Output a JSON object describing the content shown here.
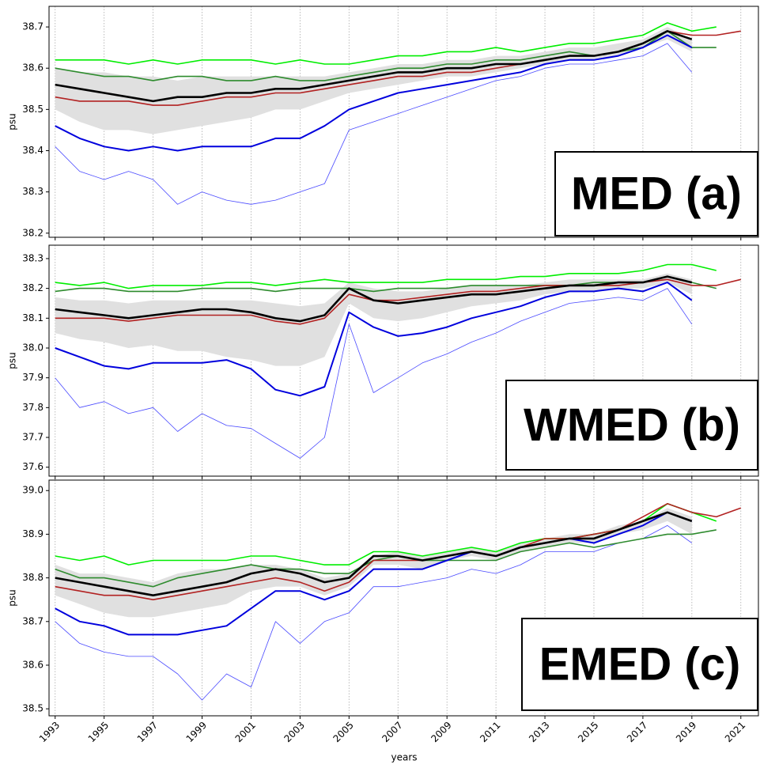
{
  "chart_data": [
    {
      "type": "line",
      "annotation": "MED (a)",
      "ylabel": "psu",
      "grid": true,
      "xtick_labels": false,
      "x": [
        1993,
        1994,
        1995,
        1996,
        1997,
        1998,
        1999,
        2000,
        2001,
        2002,
        2003,
        2004,
        2005,
        2006,
        2007,
        2008,
        2009,
        2010,
        2011,
        2012,
        2013,
        2014,
        2015,
        2016,
        2017,
        2018,
        2019,
        2020,
        2021
      ],
      "xlim": [
        1992.75,
        2021.75
      ],
      "xticks": [
        1993,
        1995,
        1997,
        1999,
        2001,
        2003,
        2005,
        2007,
        2009,
        2011,
        2013,
        2015,
        2017,
        2019,
        2021
      ],
      "ylim": [
        38.19,
        38.75
      ],
      "yticks": [
        38.2,
        38.3,
        38.4,
        38.5,
        38.6,
        38.7
      ],
      "band": {
        "color": "#e0e0e0",
        "upper": [
          38.6,
          38.59,
          38.59,
          38.58,
          38.58,
          38.57,
          38.58,
          38.58,
          38.58,
          38.58,
          38.58,
          38.58,
          38.59,
          38.6,
          38.61,
          38.61,
          38.62,
          38.62,
          38.63,
          38.63,
          38.64,
          38.65,
          38.65,
          38.66,
          38.67,
          38.7,
          38.67,
          null,
          null
        ],
        "lower": [
          38.5,
          38.47,
          38.45,
          38.45,
          38.44,
          38.45,
          38.46,
          38.47,
          38.48,
          38.5,
          38.5,
          38.52,
          38.54,
          38.55,
          38.56,
          38.57,
          38.58,
          38.58,
          38.59,
          38.6,
          38.61,
          38.62,
          38.62,
          38.63,
          38.65,
          38.67,
          38.64,
          null,
          null
        ]
      },
      "series": [
        {
          "color": "#4a4aff",
          "linewidth": 0.8,
          "values": [
            38.41,
            38.35,
            38.33,
            38.35,
            38.33,
            38.27,
            38.3,
            38.28,
            38.27,
            38.28,
            38.3,
            38.32,
            38.45,
            38.47,
            38.49,
            38.51,
            38.53,
            38.55,
            38.57,
            38.58,
            38.6,
            38.61,
            38.61,
            38.62,
            38.63,
            38.66,
            38.59,
            null,
            null
          ]
        },
        {
          "color": "#00ee00",
          "linewidth": 1.6,
          "values": [
            38.62,
            38.62,
            38.62,
            38.61,
            38.62,
            38.61,
            38.62,
            38.62,
            38.62,
            38.61,
            38.62,
            38.61,
            38.61,
            38.62,
            38.63,
            38.63,
            38.64,
            38.64,
            38.65,
            38.64,
            38.65,
            38.66,
            38.66,
            38.67,
            38.68,
            38.71,
            38.69,
            38.7,
            null
          ]
        },
        {
          "color": "#2e8b2e",
          "linewidth": 1.6,
          "values": [
            38.6,
            38.59,
            38.58,
            38.58,
            38.57,
            38.58,
            38.58,
            38.57,
            38.57,
            38.58,
            38.57,
            38.57,
            38.58,
            38.59,
            38.6,
            38.6,
            38.61,
            38.61,
            38.62,
            38.62,
            38.63,
            38.64,
            38.63,
            38.64,
            38.65,
            38.69,
            38.65,
            38.65,
            null
          ]
        },
        {
          "color": "#b22222",
          "linewidth": 1.6,
          "values": [
            38.53,
            38.52,
            38.52,
            38.52,
            38.51,
            38.51,
            38.52,
            38.53,
            38.53,
            38.54,
            38.54,
            38.55,
            38.56,
            38.57,
            38.58,
            38.58,
            38.59,
            38.59,
            38.6,
            38.61,
            38.62,
            38.63,
            38.63,
            38.64,
            38.66,
            38.69,
            38.68,
            38.68,
            38.69
          ]
        },
        {
          "color": "#0000dd",
          "linewidth": 2,
          "values": [
            38.46,
            38.43,
            38.41,
            38.4,
            38.41,
            38.4,
            38.41,
            38.41,
            38.41,
            38.43,
            38.43,
            38.46,
            38.5,
            38.52,
            38.54,
            38.55,
            38.56,
            38.57,
            38.58,
            38.59,
            38.61,
            38.62,
            38.62,
            38.63,
            38.65,
            38.68,
            38.65,
            null,
            null
          ]
        },
        {
          "color": "#000000",
          "linewidth": 2.6,
          "values": [
            38.56,
            38.55,
            38.54,
            38.53,
            38.52,
            38.53,
            38.53,
            38.54,
            38.54,
            38.55,
            38.55,
            38.56,
            38.57,
            38.58,
            38.59,
            38.59,
            38.6,
            38.6,
            38.61,
            38.61,
            38.62,
            38.63,
            38.63,
            38.64,
            38.66,
            38.69,
            38.67,
            null,
            null
          ]
        }
      ]
    },
    {
      "type": "line",
      "annotation": "WMED (b)",
      "ylabel": "psu",
      "grid": true,
      "xtick_labels": false,
      "x": [
        1993,
        1994,
        1995,
        1996,
        1997,
        1998,
        1999,
        2000,
        2001,
        2002,
        2003,
        2004,
        2005,
        2006,
        2007,
        2008,
        2009,
        2010,
        2011,
        2012,
        2013,
        2014,
        2015,
        2016,
        2017,
        2018,
        2019,
        2020,
        2021
      ],
      "xlim": [
        1992.75,
        2021.75
      ],
      "xticks": [
        1993,
        1995,
        1997,
        1999,
        2001,
        2003,
        2005,
        2007,
        2009,
        2011,
        2013,
        2015,
        2017,
        2019,
        2021
      ],
      "ylim": [
        37.57,
        38.345
      ],
      "yticks": [
        37.6,
        37.7,
        37.8,
        37.9,
        {
          "value": 38,
          "label": "38.0"
        },
        38.1,
        38.2,
        38.3
      ],
      "band": {
        "color": "#e0e0e0",
        "upper": [
          38.17,
          38.16,
          38.16,
          38.15,
          38.16,
          38.16,
          38.16,
          38.16,
          38.16,
          38.15,
          38.14,
          38.15,
          38.22,
          38.2,
          38.19,
          38.19,
          38.2,
          38.21,
          38.21,
          38.21,
          38.22,
          38.23,
          38.23,
          38.23,
          38.23,
          38.25,
          38.23,
          null,
          null
        ],
        "lower": [
          38.05,
          38.03,
          38.02,
          38.0,
          38.01,
          37.99,
          37.99,
          37.97,
          37.96,
          37.94,
          37.94,
          37.97,
          38.15,
          38.1,
          38.09,
          38.1,
          38.12,
          38.14,
          38.15,
          38.16,
          38.18,
          38.19,
          38.19,
          38.2,
          38.2,
          38.22,
          38.18,
          null,
          null
        ]
      },
      "series": [
        {
          "color": "#4a4aff",
          "linewidth": 0.8,
          "values": [
            37.9,
            37.8,
            37.82,
            37.78,
            37.8,
            37.72,
            37.78,
            37.74,
            37.73,
            37.68,
            37.63,
            37.7,
            38.08,
            37.85,
            37.9,
            37.95,
            37.98,
            38.02,
            38.05,
            38.09,
            38.12,
            38.15,
            38.16,
            38.17,
            38.16,
            38.2,
            38.08,
            null,
            null
          ]
        },
        {
          "color": "#00ee00",
          "linewidth": 1.6,
          "values": [
            38.22,
            38.21,
            38.22,
            38.2,
            38.21,
            38.21,
            38.21,
            38.22,
            38.22,
            38.21,
            38.22,
            38.23,
            38.22,
            38.22,
            38.22,
            38.22,
            38.23,
            38.23,
            38.23,
            38.24,
            38.24,
            38.25,
            38.25,
            38.25,
            38.26,
            38.28,
            38.28,
            38.26,
            null
          ]
        },
        {
          "color": "#2e8b2e",
          "linewidth": 1.6,
          "values": [
            38.19,
            38.2,
            38.2,
            38.19,
            38.19,
            38.19,
            38.2,
            38.2,
            38.2,
            38.19,
            38.2,
            38.2,
            38.2,
            38.19,
            38.2,
            38.2,
            38.2,
            38.21,
            38.21,
            38.21,
            38.21,
            38.21,
            38.22,
            38.22,
            38.22,
            38.24,
            38.22,
            38.2,
            null
          ]
        },
        {
          "color": "#b22222",
          "linewidth": 1.6,
          "values": [
            38.1,
            38.1,
            38.1,
            38.09,
            38.1,
            38.11,
            38.11,
            38.11,
            38.11,
            38.09,
            38.08,
            38.1,
            38.18,
            38.16,
            38.16,
            38.17,
            38.18,
            38.19,
            38.19,
            38.2,
            38.21,
            38.21,
            38.21,
            38.21,
            38.22,
            38.23,
            38.21,
            38.21,
            38.23
          ]
        },
        {
          "color": "#0000dd",
          "linewidth": 2,
          "values": [
            38.0,
            37.97,
            37.94,
            37.93,
            37.95,
            37.95,
            37.95,
            37.96,
            37.93,
            37.86,
            37.84,
            37.87,
            38.12,
            38.07,
            38.04,
            38.05,
            38.07,
            38.1,
            38.12,
            38.14,
            38.17,
            38.19,
            38.19,
            38.2,
            38.19,
            38.22,
            38.16,
            null,
            null
          ]
        },
        {
          "color": "#000000",
          "linewidth": 2.6,
          "values": [
            38.13,
            38.12,
            38.11,
            38.1,
            38.11,
            38.12,
            38.13,
            38.13,
            38.12,
            38.1,
            38.09,
            38.11,
            38.2,
            38.16,
            38.15,
            38.16,
            38.17,
            38.18,
            38.18,
            38.19,
            38.2,
            38.21,
            38.21,
            38.22,
            38.22,
            38.24,
            38.22,
            null,
            null
          ]
        }
      ]
    },
    {
      "type": "line",
      "annotation": "EMED (c)",
      "ylabel": "psu",
      "xlabel": "years",
      "grid": true,
      "xtick_labels": true,
      "x": [
        1993,
        1994,
        1995,
        1996,
        1997,
        1998,
        1999,
        2000,
        2001,
        2002,
        2003,
        2004,
        2005,
        2006,
        2007,
        2008,
        2009,
        2010,
        2011,
        2012,
        2013,
        2014,
        2015,
        2016,
        2017,
        2018,
        2019,
        2020,
        2021
      ],
      "xlim": [
        1992.75,
        2021.75
      ],
      "xticks": [
        1993,
        1995,
        1997,
        1999,
        2001,
        2003,
        2005,
        2007,
        2009,
        2011,
        2013,
        2015,
        2017,
        2019,
        2021
      ],
      "ylim": [
        38.484,
        39.024
      ],
      "yticks": [
        38.5,
        38.6,
        38.7,
        38.8,
        38.9,
        {
          "value": 39,
          "label": "39.0"
        }
      ],
      "band": {
        "color": "#e0e0e0",
        "upper": [
          38.83,
          38.81,
          38.81,
          38.8,
          38.79,
          38.81,
          38.82,
          38.82,
          38.83,
          38.83,
          38.82,
          38.8,
          38.81,
          38.85,
          38.86,
          38.85,
          38.86,
          38.87,
          38.86,
          38.88,
          38.89,
          38.9,
          38.9,
          38.92,
          38.93,
          38.96,
          38.94,
          null,
          null
        ],
        "lower": [
          38.76,
          38.74,
          38.72,
          38.71,
          38.71,
          38.72,
          38.73,
          38.74,
          38.77,
          38.78,
          38.78,
          38.76,
          38.78,
          38.83,
          38.83,
          38.82,
          38.84,
          38.85,
          38.84,
          38.86,
          38.87,
          38.88,
          38.88,
          38.9,
          38.91,
          38.93,
          38.9,
          null,
          null
        ]
      },
      "series": [
        {
          "color": "#4a4aff",
          "linewidth": 0.8,
          "values": [
            38.7,
            38.65,
            38.63,
            38.62,
            38.62,
            38.58,
            38.52,
            38.58,
            38.55,
            38.7,
            38.65,
            38.7,
            38.72,
            38.78,
            38.78,
            38.79,
            38.8,
            38.82,
            38.81,
            38.83,
            38.86,
            38.86,
            38.86,
            38.88,
            38.89,
            38.92,
            38.88,
            null,
            null
          ]
        },
        {
          "color": "#00ee00",
          "linewidth": 1.6,
          "values": [
            38.85,
            38.84,
            38.85,
            38.83,
            38.84,
            38.84,
            38.84,
            38.84,
            38.85,
            38.85,
            38.84,
            38.83,
            38.83,
            38.86,
            38.86,
            38.85,
            38.86,
            38.87,
            38.86,
            38.88,
            38.89,
            38.89,
            38.9,
            38.91,
            38.93,
            38.97,
            38.95,
            38.93,
            null
          ]
        },
        {
          "color": "#2e8b2e",
          "linewidth": 1.6,
          "values": [
            38.82,
            38.8,
            38.8,
            38.79,
            38.78,
            38.8,
            38.81,
            38.82,
            38.83,
            38.82,
            38.82,
            38.81,
            38.81,
            38.84,
            38.85,
            38.84,
            38.84,
            38.84,
            38.84,
            38.86,
            38.87,
            38.88,
            38.87,
            38.88,
            38.89,
            38.9,
            38.9,
            38.91,
            null
          ]
        },
        {
          "color": "#b22222",
          "linewidth": 1.6,
          "values": [
            38.78,
            38.77,
            38.76,
            38.76,
            38.75,
            38.76,
            38.77,
            38.78,
            38.79,
            38.8,
            38.79,
            38.77,
            38.79,
            38.84,
            38.84,
            38.84,
            38.85,
            38.86,
            38.85,
            38.87,
            38.89,
            38.89,
            38.9,
            38.91,
            38.94,
            38.97,
            38.95,
            38.94,
            38.96
          ]
        },
        {
          "color": "#0000dd",
          "linewidth": 2,
          "values": [
            38.73,
            38.7,
            38.69,
            38.67,
            38.67,
            38.67,
            38.68,
            38.69,
            38.73,
            38.77,
            38.77,
            38.75,
            38.77,
            38.82,
            38.82,
            38.82,
            38.84,
            38.86,
            38.85,
            38.87,
            38.88,
            38.89,
            38.88,
            38.9,
            38.92,
            38.95,
            38.93,
            null,
            null
          ]
        },
        {
          "color": "#000000",
          "linewidth": 2.6,
          "values": [
            38.8,
            38.79,
            38.78,
            38.77,
            38.76,
            38.77,
            38.78,
            38.79,
            38.81,
            38.82,
            38.81,
            38.79,
            38.8,
            38.85,
            38.85,
            38.84,
            38.85,
            38.86,
            38.85,
            38.87,
            38.88,
            38.89,
            38.89,
            38.91,
            38.93,
            38.95,
            38.93,
            null,
            null
          ]
        }
      ]
    }
  ]
}
